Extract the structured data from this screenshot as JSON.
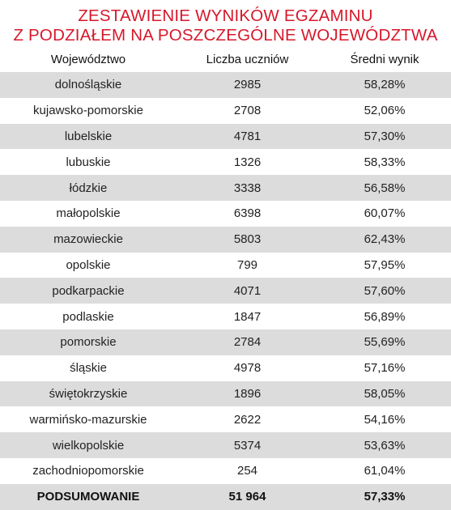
{
  "title": {
    "line1": "ZESTAWIENIE WYNIKÓW EGZAMINU",
    "line2": "Z PODZIAŁEM NA POSZCZEGÓLNE WOJEWÓDZTWA"
  },
  "colors": {
    "title": "#d7182a",
    "stripe": "#dcdcdc",
    "background": "#ffffff"
  },
  "table": {
    "headers": [
      "Województwo",
      "Liczba uczniów",
      "Średni wynik"
    ],
    "rows": [
      [
        "dolnośląskie",
        "2985",
        "58,28%"
      ],
      [
        "kujawsko-pomorskie",
        "2708",
        "52,06%"
      ],
      [
        "lubelskie",
        "4781",
        "57,30%"
      ],
      [
        "lubuskie",
        "1326",
        "58,33%"
      ],
      [
        "łódzkie",
        "3338",
        "56,58%"
      ],
      [
        "małopolskie",
        "6398",
        "60,07%"
      ],
      [
        "mazowieckie",
        "5803",
        "62,43%"
      ],
      [
        "opolskie",
        "799",
        "57,95%"
      ],
      [
        "podkarpackie",
        "4071",
        "57,60%"
      ],
      [
        "podlaskie",
        "1847",
        "56,89%"
      ],
      [
        "pomorskie",
        "2784",
        "55,69%"
      ],
      [
        "śląskie",
        "4978",
        "57,16%"
      ],
      [
        "świętokrzyskie",
        "1896",
        "58,05%"
      ],
      [
        "warmińsko-mazurskie",
        "2622",
        "54,16%"
      ],
      [
        "wielkopolskie",
        "5374",
        "53,63%"
      ],
      [
        "zachodniopomorskie",
        "254",
        "61,04%"
      ]
    ],
    "summary": [
      "PODSUMOWANIE",
      "51 964",
      "57,33%"
    ]
  }
}
